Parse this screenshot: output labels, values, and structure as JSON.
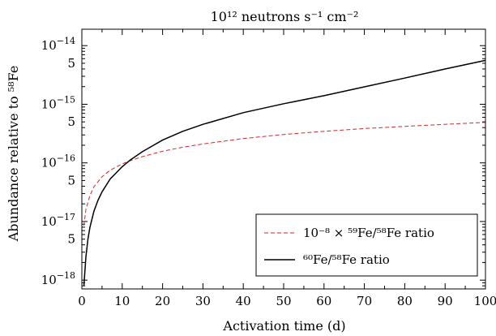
{
  "chart_data": {
    "type": "line",
    "title": "10¹² neutrons s⁻¹ cm⁻²",
    "xlabel": "Activation time (d)",
    "ylabel": "Abundance relative to ⁵⁸Fe",
    "xlim": [
      0,
      100
    ],
    "ylim_log10": [
      -18.15,
      -13.72
    ],
    "y_scale": "log",
    "grid": false,
    "legend_position": "lower-right",
    "x_ticks": [
      0,
      10,
      20,
      30,
      40,
      50,
      60,
      70,
      80,
      90,
      100
    ],
    "y_major_ticks": [
      {
        "exp": -18,
        "label_base": "10",
        "label_exp": "−18"
      },
      {
        "exp": -17,
        "label_base": "10",
        "label_exp": "−17"
      },
      {
        "exp": -16,
        "label_base": "10",
        "label_exp": "−16"
      },
      {
        "exp": -15,
        "label_base": "10",
        "label_exp": "−15"
      },
      {
        "exp": -14,
        "label_base": "10",
        "label_exp": "−14"
      }
    ],
    "y_minor_labels": [
      {
        "value": 5e-18,
        "label": "5"
      },
      {
        "value": 5e-17,
        "label": "5"
      },
      {
        "value": 5e-16,
        "label": "5"
      },
      {
        "value": 5e-15,
        "label": "5"
      }
    ],
    "series": [
      {
        "name": "10⁻⁸ × ⁵⁹Fe/⁵⁸Fe ratio",
        "style": "dashed",
        "color": "#d62728",
        "x": [
          0.5,
          1,
          2,
          3,
          5,
          7,
          10,
          12,
          15,
          20,
          25,
          30,
          40,
          50,
          60,
          70,
          80,
          90,
          100
        ],
        "y": [
          8.5e-18,
          1.6e-17,
          2.8e-17,
          3.9e-17,
          5.8e-17,
          7.5e-17,
          9.6e-17,
          1.09e-16,
          1.28e-16,
          1.58e-16,
          1.85e-16,
          2.1e-16,
          2.6e-16,
          3.05e-16,
          3.45e-16,
          3.85e-16,
          4.2e-16,
          4.55e-16,
          4.9e-16
        ]
      },
      {
        "name": "⁶⁰Fe/⁵⁸Fe ratio",
        "style": "solid",
        "color": "#000000",
        "x": [
          0.5,
          1,
          1.5,
          2,
          3,
          4,
          5,
          7,
          10,
          12,
          15,
          20,
          25,
          30,
          40,
          50,
          60,
          70,
          80,
          90,
          100
        ],
        "y": [
          8e-19,
          2.5e-18,
          5e-18,
          8e-18,
          1.5e-17,
          2.3e-17,
          3.2e-17,
          5.3e-17,
          8.6e-17,
          1.12e-16,
          1.55e-16,
          2.45e-16,
          3.45e-16,
          4.55e-16,
          7.2e-16,
          1.02e-15,
          1.4e-15,
          1.98e-15,
          2.8e-15,
          4e-15,
          5.6e-15
        ]
      }
    ]
  }
}
